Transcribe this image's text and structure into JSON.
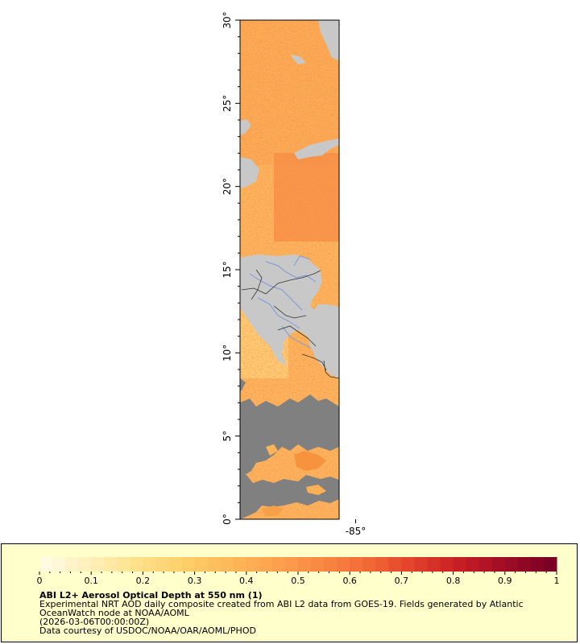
{
  "map": {
    "y_ticks": [
      {
        "label": "0°",
        "value": 0
      },
      {
        "label": "5°",
        "value": 5
      },
      {
        "label": "10°",
        "value": 10
      },
      {
        "label": "15°",
        "value": 15
      },
      {
        "label": "20°",
        "value": 20
      },
      {
        "label": "25°",
        "value": 25
      },
      {
        "label": "30°",
        "value": 30
      }
    ],
    "x_ticks": [
      {
        "label": "-85°",
        "value": -85
      }
    ],
    "lat_range": [
      0,
      30
    ],
    "lon_range": [
      -88.5,
      -85.5
    ],
    "colors": {
      "land": "#c8c8c8",
      "no_data": "#808080",
      "aod_base": "#fdb35a",
      "borders": "#000000",
      "rivers": "#7a9ad8"
    }
  },
  "legend": {
    "title": "ABI L2+ Aerosol Optical Depth at 550 nm (1)",
    "line1": "Experimental NRT AOD daily composite created from ABI L2 data from GOES-19. Fields generated by Atlantic",
    "line2": "OceanWatch node at NOAA/AOML",
    "line3": "(2026-03-06T00:00:00Z)",
    "line4": "Data courtesy of USDOC/NOAA/OAR/AOML/PHOD",
    "colorbar_ticks": [
      {
        "label": "0",
        "value": 0
      },
      {
        "label": "0.1",
        "value": 0.1
      },
      {
        "label": "0.2",
        "value": 0.2
      },
      {
        "label": "0.3",
        "value": 0.3
      },
      {
        "label": "0.4",
        "value": 0.4
      },
      {
        "label": "0.5",
        "value": 0.5
      },
      {
        "label": "0.6",
        "value": 0.6
      },
      {
        "label": "0.7",
        "value": 0.7
      },
      {
        "label": "0.8",
        "value": 0.8
      },
      {
        "label": "0.9",
        "value": 0.9
      },
      {
        "label": "1",
        "value": 1
      }
    ],
    "colorbar_range": [
      0,
      1
    ],
    "colorbar_colors": [
      "#fffae0",
      "#ffefb8",
      "#ffe08a",
      "#ffcf6a",
      "#fdb95a",
      "#fda24e",
      "#f98843",
      "#f26a36",
      "#e2412a",
      "#c81e24",
      "#a00d25",
      "#7a0026"
    ]
  }
}
